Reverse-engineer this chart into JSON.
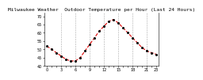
{
  "title": "Milwaukee Weather  Outdoor Temperature per Hour (Last 24 Hours)",
  "hours": [
    0,
    1,
    2,
    3,
    4,
    5,
    6,
    7,
    8,
    9,
    10,
    11,
    12,
    13,
    14,
    15,
    16,
    17,
    18,
    19,
    20,
    21,
    22,
    23
  ],
  "temps": [
    52,
    50,
    48,
    46,
    44,
    43,
    43,
    45,
    49,
    53,
    57,
    61,
    64,
    67,
    68,
    66,
    63,
    60,
    57,
    54,
    51,
    49,
    48,
    47
  ],
  "line_color": "#dd0000",
  "marker_color": "#000000",
  "background_color": "#ffffff",
  "ylim": [
    40,
    72
  ],
  "yticks": [
    40,
    45,
    50,
    55,
    60,
    65,
    70
  ],
  "xtick_labels": [
    "0",
    "",
    "",
    "3",
    "",
    "",
    "6",
    "",
    "",
    "9",
    "",
    "",
    "12",
    "",
    "",
    "15",
    "",
    "",
    "18",
    "",
    "",
    "21",
    "",
    "23"
  ],
  "grid_color": "#aaaaaa",
  "title_fontsize": 4.5,
  "tick_fontsize": 3.5
}
